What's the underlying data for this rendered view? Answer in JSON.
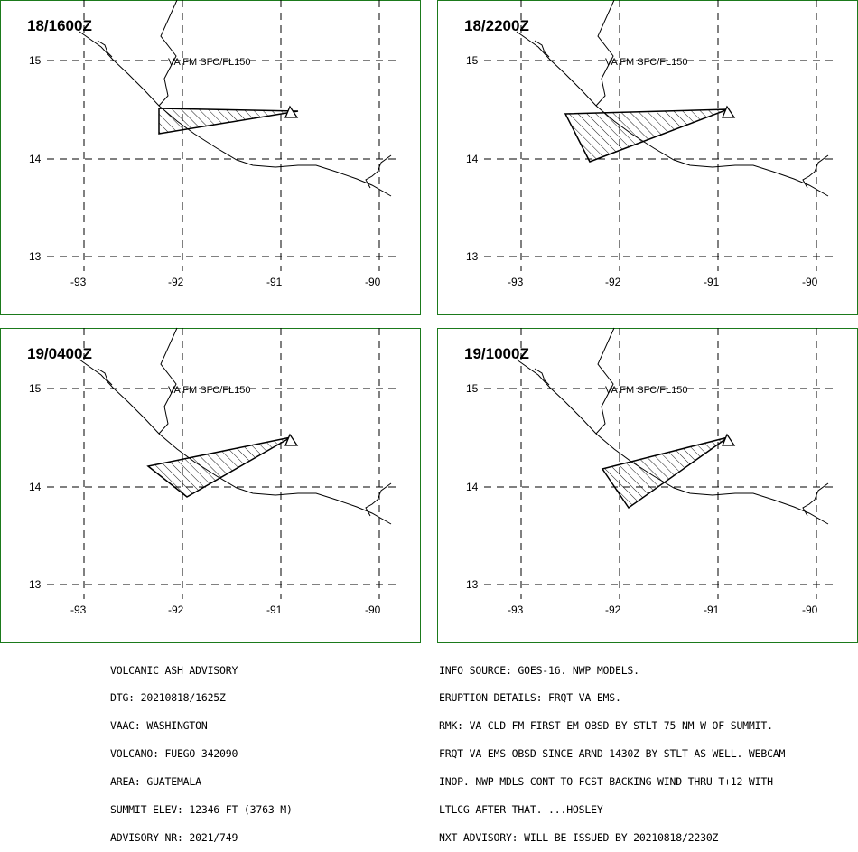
{
  "panels": [
    {
      "valid_time": "18/1600Z",
      "layer_label": "VA FM SFC/FL150",
      "ash_polygon": [
        [
          -92.2,
          14.52
        ],
        [
          -90.8,
          14.47
        ],
        [
          -92.2,
          14.25
        ]
      ]
    },
    {
      "valid_time": "18/2200Z",
      "layer_label": "VA FM SFC/FL150",
      "ash_polygon": [
        [
          -92.5,
          14.45
        ],
        [
          -90.85,
          14.5
        ],
        [
          -92.25,
          13.97
        ]
      ]
    },
    {
      "valid_time": "19/0400Z",
      "layer_label": "VA FM SFC/FL150",
      "ash_polygon": [
        [
          -92.3,
          14.2
        ],
        [
          -90.8,
          14.5
        ],
        [
          -91.95,
          13.9
        ]
      ]
    },
    {
      "valid_time": "19/1000Z",
      "layer_label": "VA FM SFC/FL150",
      "ash_polygon": [
        [
          -92.15,
          14.18
        ],
        [
          -90.85,
          14.5
        ],
        [
          -91.9,
          13.95
        ]
      ]
    }
  ],
  "map": {
    "lat_ticks": [
      "15",
      "14",
      "13"
    ],
    "lon_ticks": [
      "-93",
      "-92",
      "-91",
      "-90"
    ],
    "volcano_symbol": "triangle-icon",
    "colors": {
      "frame": "#1b7a1b",
      "lines": "#000000",
      "background": "#ffffff"
    }
  },
  "advisory_left": [
    "VOLCANIC ASH ADVISORY",
    "DTG: 20210818/1625Z",
    "VAAC: WASHINGTON",
    "VOLCANO: FUEGO 342090",
    "AREA: GUATEMALA",
    "SUMMIT ELEV: 12346 FT (3763 M)",
    "ADVISORY NR: 2021/749"
  ],
  "advisory_right": [
    "INFO SOURCE: GOES-16. NWP MODELS.",
    "ERUPTION DETAILS: FRQT VA EMS.",
    "RMK: VA CLD FM FIRST EM OBSD BY STLT 75 NM W OF SUMMIT.",
    "FRQT VA EMS OBSD SINCE ARND 1430Z BY STLT AS WELL. WEBCAM",
    "INOP. NWP MDLS CONT TO FCST BACKING WIND THRU T+12 WITH",
    "LTLCG AFTER THAT. ...HOSLEY",
    "NXT ADVISORY: WILL BE ISSUED BY 20210818/2230Z"
  ]
}
